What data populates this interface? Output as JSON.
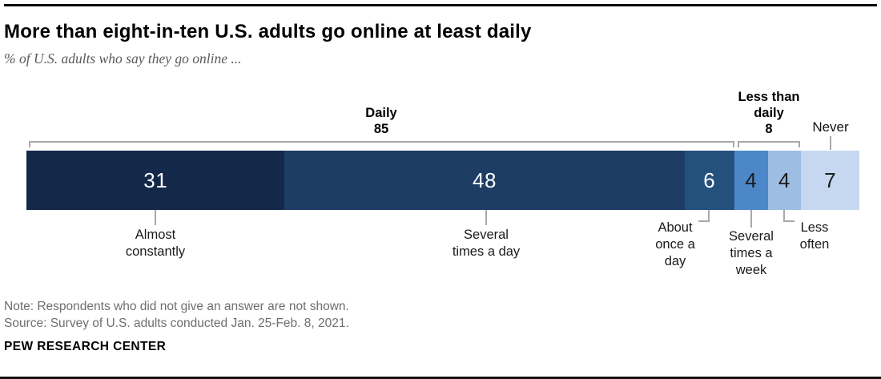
{
  "header": {
    "title": "More than eight-in-ten U.S. adults go online at least daily",
    "subtitle": "% of U.S. adults who say they go online ..."
  },
  "chart_data": {
    "type": "bar",
    "variant": "horizontal-stacked-100",
    "title": "More than eight-in-ten U.S. adults go online at least daily",
    "subtitle": "% of U.S. adults who say they go online ...",
    "unit": "percent of U.S. adults",
    "segments": [
      {
        "label": "Almost constantly",
        "value": 31,
        "color": "#14294a",
        "text_color": "#ffffff"
      },
      {
        "label": "Several times a day",
        "value": 48,
        "color": "#1e3d64",
        "text_color": "#ffffff"
      },
      {
        "label": "About once a day",
        "value": 6,
        "color": "#24507e",
        "text_color": "#ffffff"
      },
      {
        "label": "Several times a week",
        "value": 4,
        "color": "#4c88c9",
        "text_color": "#1a1a1a"
      },
      {
        "label": "Less often",
        "value": 4,
        "color": "#9dbde3",
        "text_color": "#1a1a1a"
      },
      {
        "label": "Never",
        "value": 7,
        "color": "#c5d8f0",
        "text_color": "#1a1a1a"
      }
    ],
    "groups": [
      {
        "label": "Daily",
        "value": 85,
        "spans": [
          "Almost constantly",
          "Several times a day",
          "About once a day"
        ]
      },
      {
        "label": "Less than daily",
        "value": 8,
        "spans": [
          "Several times a week",
          "Less often"
        ]
      },
      {
        "label": "Never",
        "value": "",
        "spans": [
          "Never"
        ]
      }
    ],
    "annotation_color": "#a9a9a9",
    "legend": "none",
    "axes": "none"
  },
  "footer": {
    "note": "Note: Respondents who did not give an answer are not shown.",
    "source": "Source: Survey of U.S. adults conducted Jan. 25-Feb. 8, 2021.",
    "brand": "PEW RESEARCH CENTER"
  }
}
